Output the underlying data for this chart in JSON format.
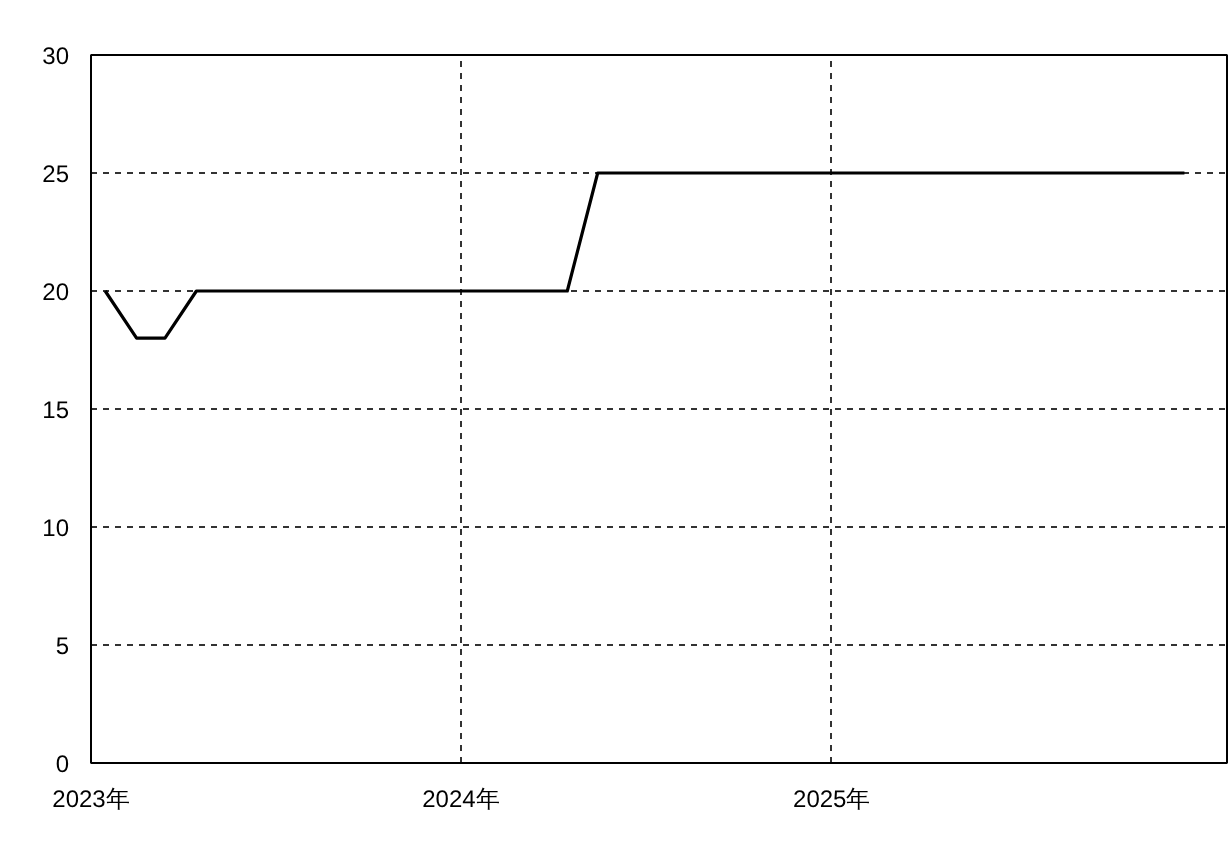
{
  "chart_data": {
    "type": "line",
    "x": [
      "2023-01-15",
      "2023-02-15",
      "2023-03-15",
      "2023-04-15",
      "2023-05-15",
      "2023-06-15",
      "2023-07-15",
      "2023-08-15",
      "2023-09-15",
      "2023-10-15",
      "2023-11-15",
      "2023-12-15",
      "2024-01-15",
      "2024-02-15",
      "2024-03-15",
      "2024-04-15",
      "2024-05-15",
      "2024-06-15",
      "2024-07-15",
      "2024-08-15",
      "2024-09-15",
      "2024-10-15",
      "2024-11-15",
      "2024-12-15",
      "2025-01-15",
      "2025-02-15",
      "2025-03-15",
      "2025-04-15",
      "2025-05-15",
      "2025-06-15",
      "2025-07-15",
      "2025-08-15",
      "2025-09-15",
      "2025-10-15",
      "2025-11-15",
      "2025-12-15"
    ],
    "series": [
      {
        "color": "#000000",
        "values": [
          20,
          18,
          18,
          20,
          20,
          20,
          20,
          20,
          20,
          20,
          20,
          20,
          20,
          20,
          20,
          20,
          25,
          25,
          25,
          25,
          25,
          25,
          25,
          25,
          25,
          25,
          25,
          25,
          25,
          25,
          25,
          25,
          25,
          25,
          25,
          25
        ]
      }
    ],
    "xlim": [
      "2023-01-01",
      "2026-01-26"
    ],
    "xticks": [
      {
        "value": "2023-01-01",
        "label": "2023年"
      },
      {
        "value": "2024-01-01",
        "label": "2024年"
      },
      {
        "value": "2025-01-01",
        "label": "2025年"
      }
    ],
    "ylim": [
      0,
      30
    ],
    "yticks": [
      0,
      5,
      10,
      15,
      20,
      25,
      30
    ],
    "grid": true,
    "marker": "none",
    "line_style": "solid"
  }
}
